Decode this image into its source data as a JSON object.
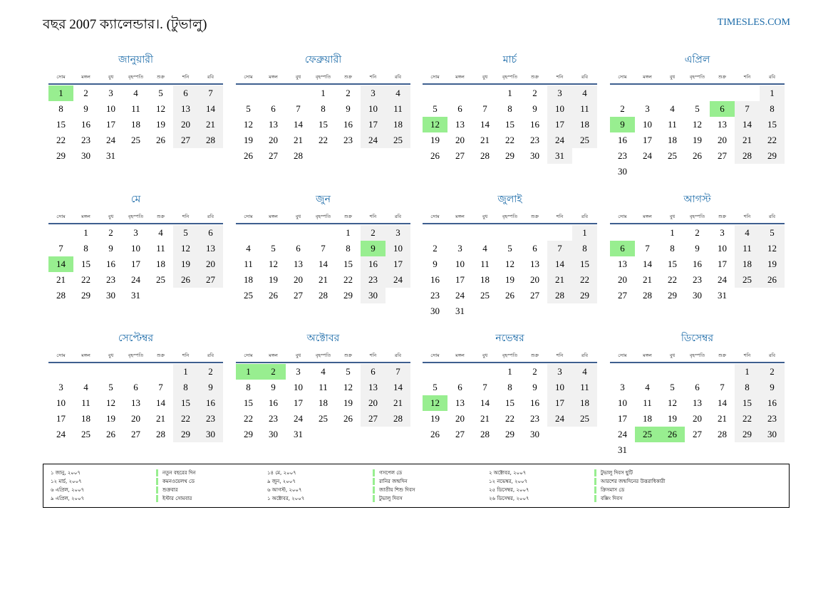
{
  "header": {
    "title": "বছর 2007 ক্যালেন্ডার।. (টুভালু)",
    "site": "TIMESLES.COM"
  },
  "weekdays": [
    "সোম",
    "মঙ্গল",
    "বুধ",
    "বৃহস্পতি",
    "শুক্র",
    "শনি",
    "রবি"
  ],
  "colors": {
    "accent": "#1a6aa8",
    "holiday": "#98ee90",
    "weekend": "#f1f1f1",
    "rule": "#3e5f8f"
  },
  "months": [
    {
      "name": "জানুয়ারী",
      "offset": 0,
      "days": 31,
      "holidays": [
        1
      ]
    },
    {
      "name": "ফেব্রুয়ারী",
      "offset": 3,
      "days": 28,
      "holidays": []
    },
    {
      "name": "মার্চ",
      "offset": 3,
      "days": 31,
      "holidays": [
        12
      ]
    },
    {
      "name": "এপ্রিল",
      "offset": 6,
      "days": 30,
      "holidays": [
        6,
        9
      ]
    },
    {
      "name": "মে",
      "offset": 1,
      "days": 31,
      "holidays": [
        14
      ]
    },
    {
      "name": "জুন",
      "offset": 4,
      "days": 30,
      "holidays": [
        9
      ]
    },
    {
      "name": "জুলাই",
      "offset": 6,
      "days": 31,
      "holidays": []
    },
    {
      "name": "আগস্ট",
      "offset": 2,
      "days": 31,
      "holidays": [
        6
      ]
    },
    {
      "name": "সেপ্টেম্বর",
      "offset": 5,
      "days": 30,
      "holidays": []
    },
    {
      "name": "অক্টোবর",
      "offset": 0,
      "days": 31,
      "holidays": [
        1,
        2
      ]
    },
    {
      "name": "নভেম্বর",
      "offset": 3,
      "days": 30,
      "holidays": [
        12
      ]
    },
    {
      "name": "ডিসেম্বর",
      "offset": 5,
      "days": 31,
      "holidays": [
        25,
        26
      ]
    }
  ],
  "legend": [
    {
      "date": "১ জানু, ২০০৭",
      "name": "নতুন বছরের দিন"
    },
    {
      "date": "১২ মার্চ, ২০০৭",
      "name": "কমনওয়েলথ ডে"
    },
    {
      "date": "৬ এপ্রিল, ২০০৭",
      "name": "শুক্রবার"
    },
    {
      "date": "৯ এপ্রিল, ২০০৭",
      "name": "ইস্টার সোমবার"
    },
    {
      "date": "১৪ মে, ২০০৭",
      "name": "গসপেল ডে"
    },
    {
      "date": "৯ জুন, ২০০৭",
      "name": "রানির জন্মদিন"
    },
    {
      "date": "৬ আগস্ট, ২০০৭",
      "name": "জাতীয় শিশু দিবস"
    },
    {
      "date": "১ অক্টোবর, ২০০৭",
      "name": "টুভালু দিবস"
    },
    {
      "date": "২ অক্টোবর, ২০০৭",
      "name": "টুভালু দিবস ছুটি"
    },
    {
      "date": "১২ নভেম্বর, ২০০৭",
      "name": "আরশের জন্মদিনের উত্তরাধিকারী"
    },
    {
      "date": "২৫ ডিসেম্বর, ২০০৭",
      "name": "ক্রিসমাস ডে"
    },
    {
      "date": "২৬ ডিসেম্বর, ২০০৭",
      "name": "বক্সিং দিবস"
    }
  ]
}
